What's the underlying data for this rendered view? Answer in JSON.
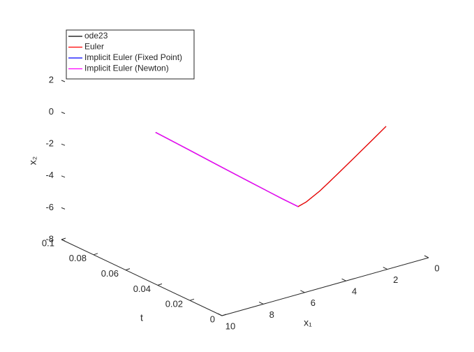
{
  "chart_data": {
    "type": "line3d",
    "xlabel": "x₁",
    "tlabel": "t",
    "ylabel": "x₂",
    "xlim": [
      0,
      10
    ],
    "xticks": [
      0,
      2,
      4,
      6,
      8,
      10
    ],
    "tlim": [
      0,
      0.1
    ],
    "tticks": [
      0,
      0.02,
      0.04,
      0.06,
      0.08,
      0.1
    ],
    "ylim": [
      -8,
      2
    ],
    "yticks": [
      -8,
      -6,
      -4,
      -2,
      0,
      2
    ],
    "legend": "upper left",
    "series": [
      {
        "name": "ode23",
        "color": "#000000",
        "t": [
          0,
          0.001,
          0.002,
          0.003,
          0.004,
          0.005,
          0.006,
          0.008,
          0.01,
          0.02,
          0.04,
          0.06,
          0.08,
          0.1
        ],
        "x": [
          2.06,
          2.6,
          3.1,
          3.6,
          4.05,
          4.45,
          4.8,
          5.3,
          5.54,
          5.55,
          5.53,
          5.5,
          5.47,
          5.44
        ],
        "values": [
          1,
          0.35,
          -0.25,
          -0.85,
          -1.4,
          -1.9,
          -2.35,
          -2.95,
          -3.25,
          -3.22,
          -3.15,
          -3.08,
          -3.0,
          -2.93
        ]
      },
      {
        "name": "Euler",
        "color": "#ff0000",
        "t": [
          0,
          0.001,
          0.002,
          0.003,
          0.004,
          0.005,
          0.006,
          0.008,
          0.01,
          0.02,
          0.04,
          0.06,
          0.08,
          0.1
        ],
        "x": [
          2.06,
          2.6,
          3.1,
          3.6,
          4.05,
          4.45,
          4.8,
          5.3,
          5.54,
          5.55,
          5.53,
          5.5,
          5.47,
          5.44
        ],
        "values": [
          1,
          0.35,
          -0.25,
          -0.85,
          -1.4,
          -1.9,
          -2.35,
          -2.95,
          -3.25,
          -3.22,
          -3.15,
          -3.08,
          -3.0,
          -2.93
        ]
      },
      {
        "name": "Implicit Euler (Fixed Point)",
        "color": "#0000ff",
        "t": [
          0.01,
          0.02,
          0.04,
          0.06,
          0.08,
          0.1
        ],
        "x": [
          5.54,
          5.55,
          5.53,
          5.5,
          5.47,
          5.44
        ],
        "values": [
          -3.25,
          -3.22,
          -3.15,
          -3.08,
          -3.0,
          -2.93
        ]
      },
      {
        "name": "Implicit Euler (Newton)",
        "color": "#ff00ff",
        "t": [
          0.01,
          0.02,
          0.04,
          0.06,
          0.08,
          0.1
        ],
        "x": [
          5.54,
          5.55,
          5.53,
          5.5,
          5.47,
          5.44
        ],
        "values": [
          -3.25,
          -3.22,
          -3.15,
          -3.08,
          -3.0,
          -2.93
        ]
      }
    ]
  }
}
